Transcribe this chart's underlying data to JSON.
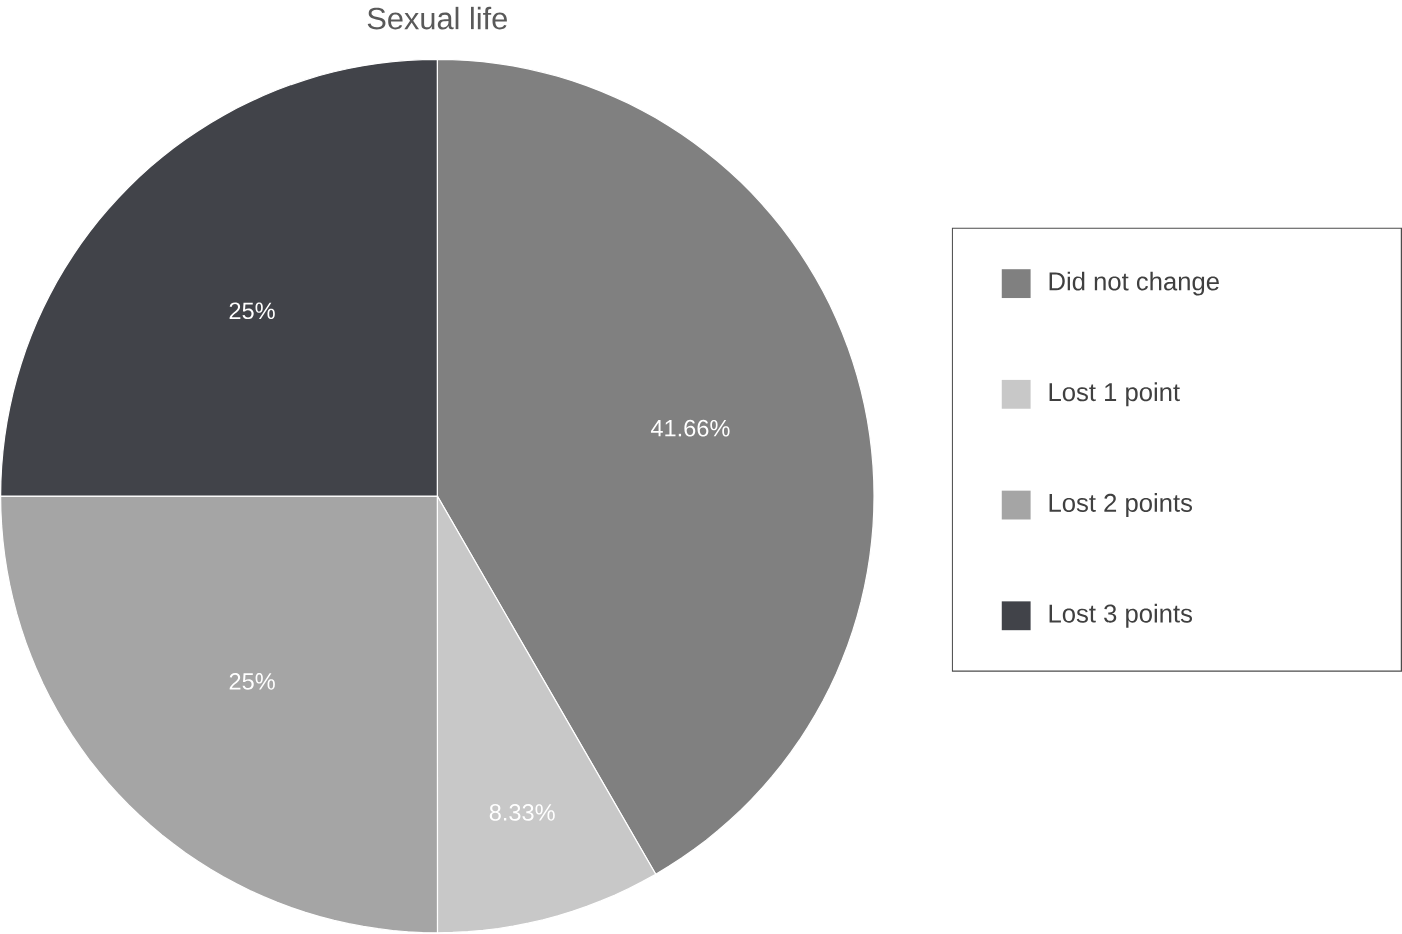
{
  "chart_data": {
    "type": "pie",
    "title": "Sexual life",
    "categories": [
      "Did not change",
      "Lost 1 point",
      "Lost 2 points",
      "Lost 3 points"
    ],
    "values": [
      41.66,
      8.33,
      25,
      25
    ],
    "colors": [
      "#808080",
      "#c8c8c8",
      "#a5a5a5",
      "#414349"
    ],
    "value_labels": [
      "41.66%",
      "8.33%",
      "25%",
      "25%"
    ],
    "legend": "right"
  }
}
